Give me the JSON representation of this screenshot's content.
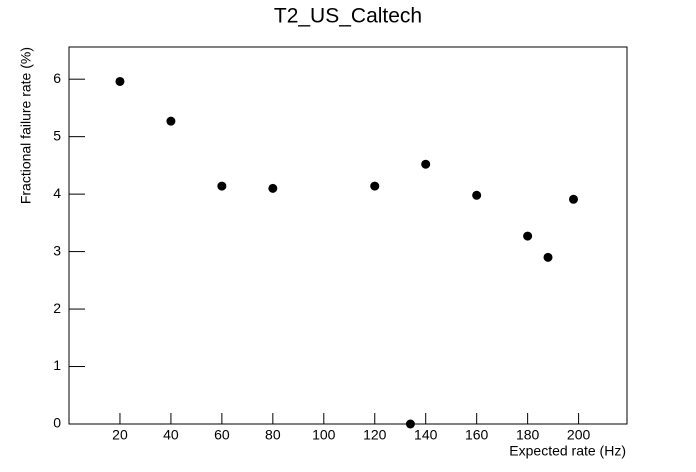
{
  "chart_data": {
    "type": "scatter",
    "title": "T2_US_Caltech",
    "x_label": "Expected rate (Hz)",
    "y_label": "Fractional failure rate (%)",
    "x": [
      20,
      40,
      60,
      80,
      120,
      134,
      140,
      160,
      180,
      188,
      198
    ],
    "values": [
      5.96,
      5.27,
      4.14,
      4.1,
      4.14,
      0,
      4.52,
      3.98,
      3.27,
      2.9,
      3.91
    ],
    "color": "#000000",
    "xlim": [
      0,
      219
    ],
    "xticks": [
      20,
      40,
      60,
      80,
      100,
      120,
      140,
      160,
      180,
      200
    ],
    "ylim": [
      0,
      6.56
    ],
    "yticks": [
      0,
      1,
      2,
      3,
      4,
      5,
      6
    ],
    "grid": false
  }
}
